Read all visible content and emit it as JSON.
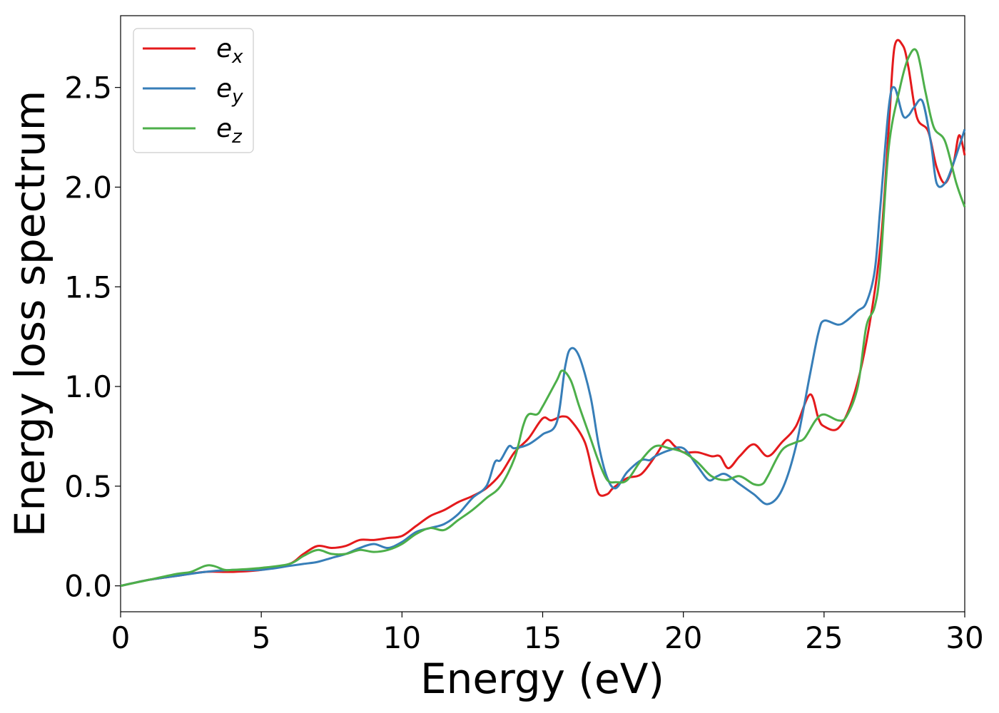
{
  "chart_data": {
    "type": "line",
    "title": "",
    "xlabel": "Energy (eV)",
    "ylabel": "Energy loss spectrum",
    "xlim": [
      0,
      30
    ],
    "ylim": [
      -0.13,
      2.86
    ],
    "grid": false,
    "legend_position": "top-left",
    "x_ticks": [
      0,
      5,
      10,
      15,
      20,
      25,
      30
    ],
    "x_tick_labels": [
      "0",
      "5",
      "10",
      "15",
      "20",
      "25",
      "30"
    ],
    "y_ticks": [
      0.0,
      0.5,
      1.0,
      1.5,
      2.0,
      2.5
    ],
    "y_tick_labels": [
      "0.0",
      "0.5",
      "1.0",
      "1.5",
      "2.0",
      "2.5"
    ],
    "series": [
      {
        "name": "e_x",
        "legend_base": "e",
        "legend_sub": "x",
        "color": "#e41a1c",
        "points": [
          [
            0,
            0
          ],
          [
            1,
            0.03
          ],
          [
            2,
            0.05
          ],
          [
            3,
            0.07
          ],
          [
            4,
            0.07
          ],
          [
            5,
            0.08
          ],
          [
            6,
            0.11
          ],
          [
            6.5,
            0.16
          ],
          [
            7,
            0.2
          ],
          [
            7.5,
            0.19
          ],
          [
            8,
            0.2
          ],
          [
            8.5,
            0.23
          ],
          [
            9,
            0.23
          ],
          [
            9.5,
            0.24
          ],
          [
            10,
            0.25
          ],
          [
            10.5,
            0.3
          ],
          [
            11,
            0.35
          ],
          [
            11.5,
            0.38
          ],
          [
            12,
            0.42
          ],
          [
            12.5,
            0.45
          ],
          [
            13,
            0.49
          ],
          [
            13.5,
            0.56
          ],
          [
            14,
            0.67
          ],
          [
            14.5,
            0.74
          ],
          [
            15,
            0.84
          ],
          [
            15.3,
            0.83
          ],
          [
            15.7,
            0.85
          ],
          [
            16,
            0.83
          ],
          [
            16.5,
            0.72
          ],
          [
            16.8,
            0.55
          ],
          [
            17,
            0.46
          ],
          [
            17.3,
            0.46
          ],
          [
            17.5,
            0.49
          ],
          [
            18,
            0.54
          ],
          [
            18.5,
            0.56
          ],
          [
            19,
            0.65
          ],
          [
            19.4,
            0.73
          ],
          [
            19.7,
            0.7
          ],
          [
            20,
            0.67
          ],
          [
            20.5,
            0.67
          ],
          [
            21,
            0.65
          ],
          [
            21.3,
            0.65
          ],
          [
            21.6,
            0.59
          ],
          [
            22,
            0.65
          ],
          [
            22.5,
            0.71
          ],
          [
            23,
            0.65
          ],
          [
            23.5,
            0.72
          ],
          [
            24,
            0.8
          ],
          [
            24.5,
            0.96
          ],
          [
            24.8,
            0.84
          ],
          [
            25,
            0.8
          ],
          [
            25.5,
            0.79
          ],
          [
            26,
            0.93
          ],
          [
            26.5,
            1.22
          ],
          [
            27,
            1.7
          ],
          [
            27.3,
            2.3
          ],
          [
            27.5,
            2.7
          ],
          [
            27.8,
            2.71
          ],
          [
            28,
            2.6
          ],
          [
            28.3,
            2.35
          ],
          [
            28.7,
            2.28
          ],
          [
            29,
            2.1
          ],
          [
            29.3,
            2.02
          ],
          [
            29.6,
            2.12
          ],
          [
            29.8,
            2.26
          ],
          [
            30,
            2.16
          ]
        ]
      },
      {
        "name": "e_y",
        "legend_base": "e",
        "legend_sub": "y",
        "color": "#377eb8",
        "points": [
          [
            0,
            0
          ],
          [
            1,
            0.03
          ],
          [
            2,
            0.05
          ],
          [
            3,
            0.07
          ],
          [
            4,
            0.08
          ],
          [
            5,
            0.08
          ],
          [
            6,
            0.1
          ],
          [
            6.5,
            0.11
          ],
          [
            7,
            0.12
          ],
          [
            7.5,
            0.14
          ],
          [
            8,
            0.16
          ],
          [
            8.5,
            0.19
          ],
          [
            9,
            0.21
          ],
          [
            9.5,
            0.19
          ],
          [
            10,
            0.22
          ],
          [
            10.5,
            0.27
          ],
          [
            11,
            0.29
          ],
          [
            11.5,
            0.31
          ],
          [
            12,
            0.36
          ],
          [
            12.5,
            0.44
          ],
          [
            13,
            0.5
          ],
          [
            13.3,
            0.62
          ],
          [
            13.5,
            0.63
          ],
          [
            13.8,
            0.7
          ],
          [
            14,
            0.69
          ],
          [
            14.5,
            0.71
          ],
          [
            15,
            0.76
          ],
          [
            15.5,
            0.82
          ],
          [
            15.8,
            1.1
          ],
          [
            16,
            1.19
          ],
          [
            16.3,
            1.15
          ],
          [
            16.7,
            0.95
          ],
          [
            17,
            0.7
          ],
          [
            17.3,
            0.54
          ],
          [
            17.6,
            0.49
          ],
          [
            18,
            0.57
          ],
          [
            18.5,
            0.63
          ],
          [
            18.8,
            0.63
          ],
          [
            19,
            0.65
          ],
          [
            19.5,
            0.68
          ],
          [
            20,
            0.69
          ],
          [
            20.5,
            0.6
          ],
          [
            20.9,
            0.53
          ],
          [
            21.2,
            0.55
          ],
          [
            21.5,
            0.56
          ],
          [
            22,
            0.51
          ],
          [
            22.5,
            0.46
          ],
          [
            23,
            0.41
          ],
          [
            23.5,
            0.48
          ],
          [
            24,
            0.7
          ],
          [
            24.5,
            1.06
          ],
          [
            24.8,
            1.27
          ],
          [
            25,
            1.33
          ],
          [
            25.5,
            1.31
          ],
          [
            25.8,
            1.33
          ],
          [
            26.2,
            1.38
          ],
          [
            26.5,
            1.42
          ],
          [
            26.8,
            1.58
          ],
          [
            27,
            1.9
          ],
          [
            27.3,
            2.4
          ],
          [
            27.5,
            2.5
          ],
          [
            27.8,
            2.36
          ],
          [
            28,
            2.36
          ],
          [
            28.2,
            2.4
          ],
          [
            28.5,
            2.43
          ],
          [
            28.8,
            2.22
          ],
          [
            29,
            2.02
          ],
          [
            29.3,
            2.02
          ],
          [
            29.6,
            2.12
          ],
          [
            30,
            2.29
          ]
        ]
      },
      {
        "name": "e_z",
        "legend_base": "e",
        "legend_sub": "z",
        "color": "#4daf4a",
        "points": [
          [
            0,
            0
          ],
          [
            1,
            0.03
          ],
          [
            2,
            0.06
          ],
          [
            2.5,
            0.07
          ],
          [
            3,
            0.1
          ],
          [
            3.3,
            0.1
          ],
          [
            3.7,
            0.08
          ],
          [
            4,
            0.08
          ],
          [
            5,
            0.09
          ],
          [
            6,
            0.11
          ],
          [
            6.5,
            0.15
          ],
          [
            7,
            0.18
          ],
          [
            7.5,
            0.16
          ],
          [
            8,
            0.16
          ],
          [
            8.5,
            0.18
          ],
          [
            9,
            0.17
          ],
          [
            9.5,
            0.18
          ],
          [
            10,
            0.21
          ],
          [
            10.5,
            0.26
          ],
          [
            11,
            0.29
          ],
          [
            11.5,
            0.28
          ],
          [
            12,
            0.33
          ],
          [
            12.5,
            0.38
          ],
          [
            13,
            0.44
          ],
          [
            13.5,
            0.5
          ],
          [
            14,
            0.64
          ],
          [
            14.3,
            0.8
          ],
          [
            14.5,
            0.86
          ],
          [
            14.8,
            0.86
          ],
          [
            15,
            0.9
          ],
          [
            15.5,
            1.03
          ],
          [
            15.7,
            1.08
          ],
          [
            16,
            1.03
          ],
          [
            16.3,
            0.9
          ],
          [
            16.7,
            0.74
          ],
          [
            17,
            0.62
          ],
          [
            17.3,
            0.53
          ],
          [
            17.6,
            0.52
          ],
          [
            18,
            0.53
          ],
          [
            18.5,
            0.63
          ],
          [
            19,
            0.7
          ],
          [
            19.5,
            0.69
          ],
          [
            20,
            0.67
          ],
          [
            20.5,
            0.62
          ],
          [
            21,
            0.55
          ],
          [
            21.5,
            0.53
          ],
          [
            22,
            0.55
          ],
          [
            22.5,
            0.51
          ],
          [
            22.8,
            0.51
          ],
          [
            23,
            0.55
          ],
          [
            23.5,
            0.68
          ],
          [
            24,
            0.72
          ],
          [
            24.3,
            0.74
          ],
          [
            24.7,
            0.83
          ],
          [
            25,
            0.86
          ],
          [
            25.5,
            0.83
          ],
          [
            25.8,
            0.85
          ],
          [
            26.2,
            1.0
          ],
          [
            26.5,
            1.3
          ],
          [
            26.8,
            1.4
          ],
          [
            27,
            1.6
          ],
          [
            27.3,
            2.2
          ],
          [
            27.7,
            2.5
          ],
          [
            28,
            2.65
          ],
          [
            28.3,
            2.68
          ],
          [
            28.6,
            2.48
          ],
          [
            28.9,
            2.3
          ],
          [
            29.3,
            2.23
          ],
          [
            29.7,
            2.02
          ],
          [
            30,
            1.9
          ]
        ]
      }
    ]
  }
}
